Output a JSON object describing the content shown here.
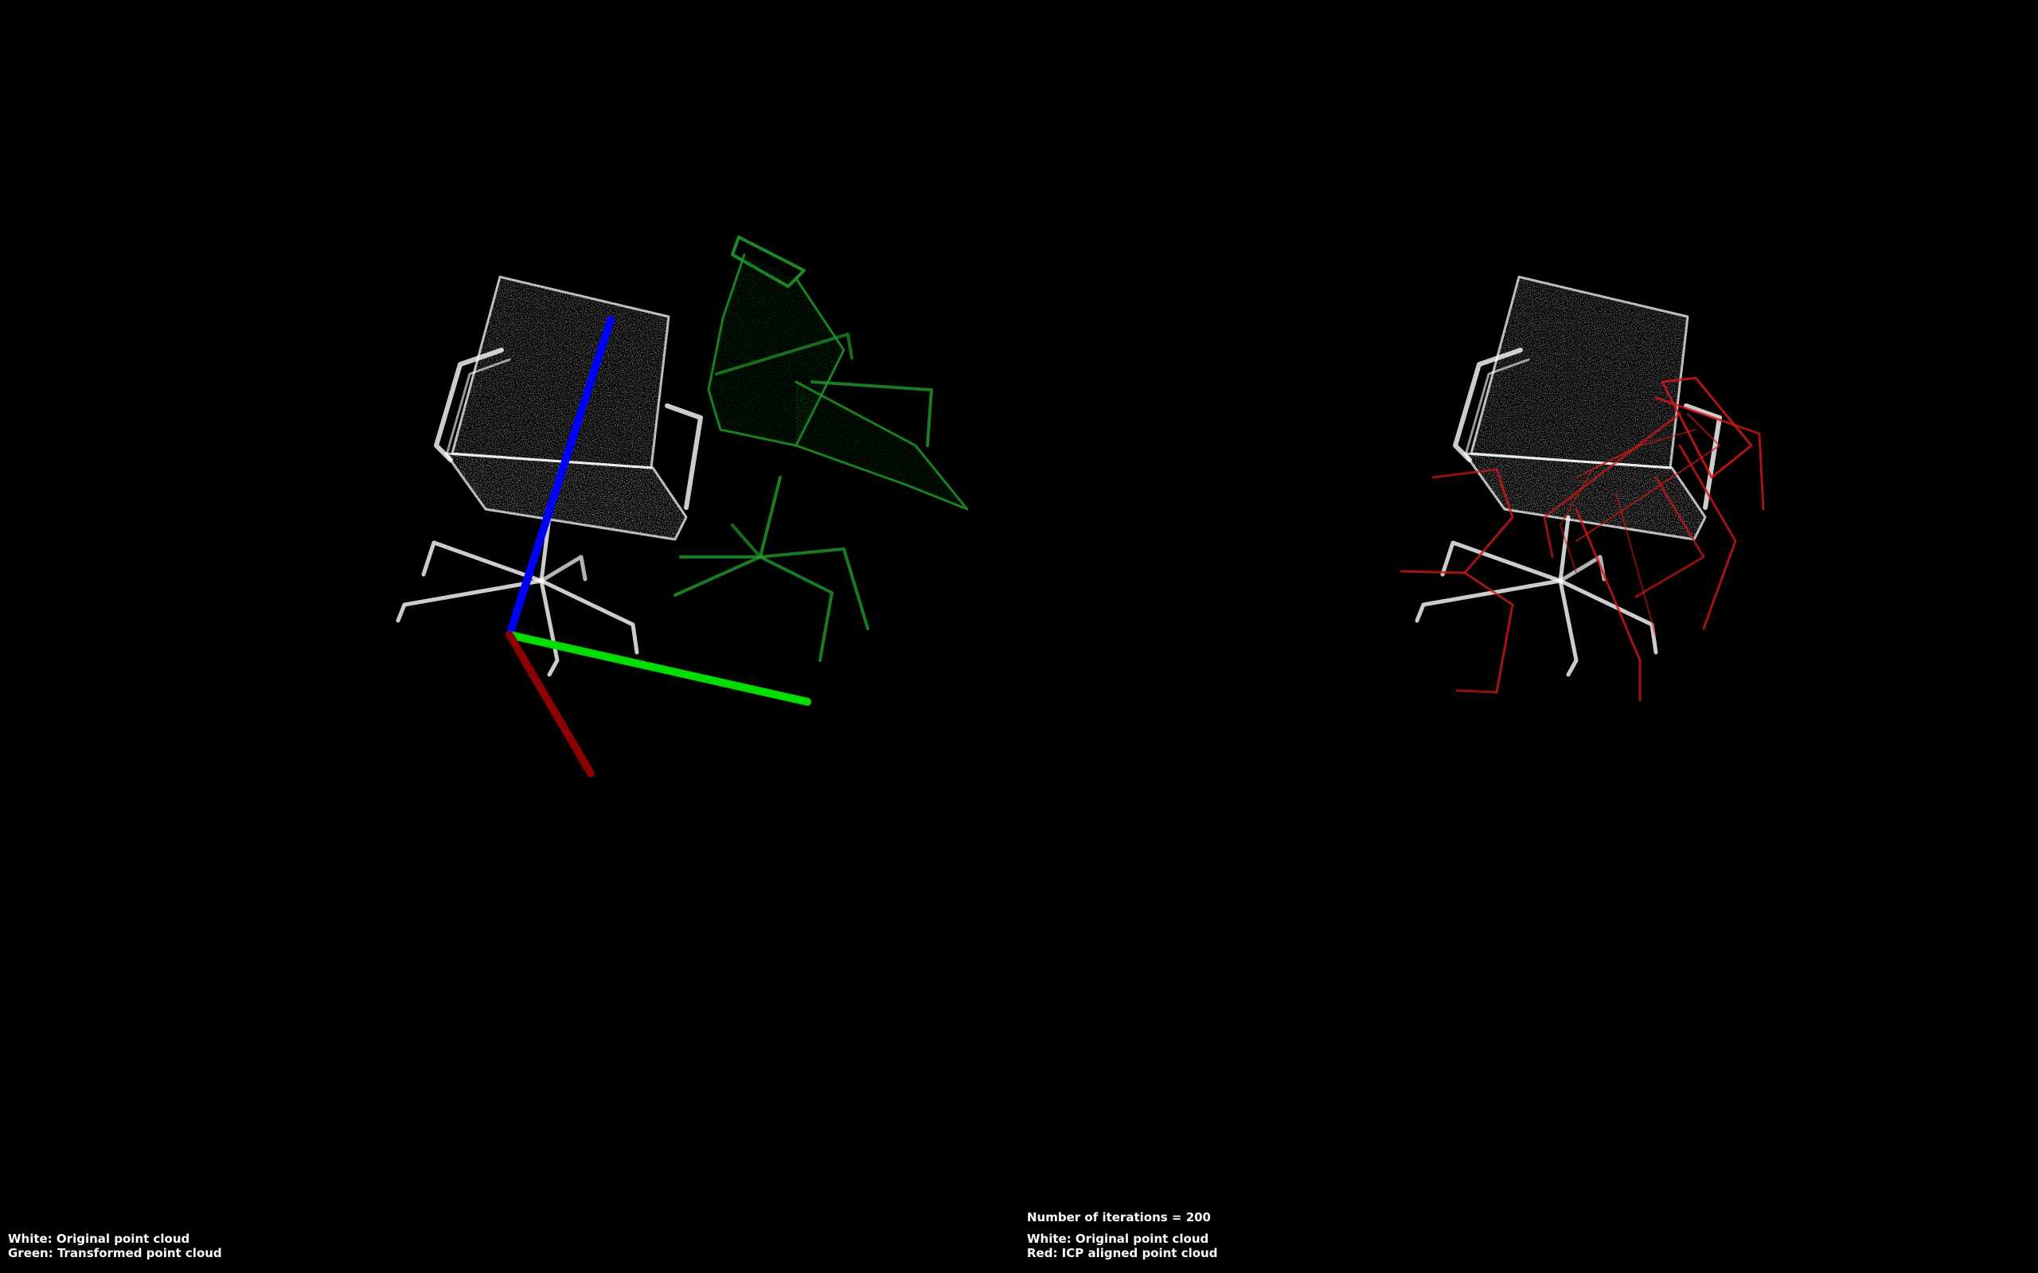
{
  "left_viewport": {
    "legend_line_1": "White: Original point cloud",
    "legend_line_2": "Green: Transformed point cloud",
    "colors": {
      "original": "#ffffff",
      "transformed": "#1f9a2a",
      "axis_x": "#8b0000",
      "axis_y": "#00dd00",
      "axis_z": "#0000ff"
    }
  },
  "right_viewport": {
    "iterations_label": "Number of iterations = 200",
    "legend_line_1": "White: Original point cloud",
    "legend_line_2": "Red: ICP aligned point cloud",
    "colors": {
      "original": "#ffffff",
      "aligned": "#d01818"
    }
  },
  "background_color": "#000000"
}
